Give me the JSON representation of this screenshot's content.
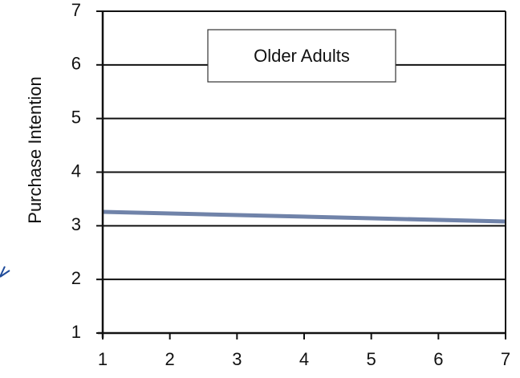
{
  "chart_data": {
    "type": "line",
    "title": "",
    "xlabel": "",
    "ylabel": "Purchase Intention",
    "xlim": [
      1,
      7
    ],
    "ylim": [
      1,
      7
    ],
    "x_ticks": [
      "1",
      "2",
      "3",
      "4",
      "5",
      "6",
      "7"
    ],
    "y_ticks": [
      "1",
      "2",
      "3",
      "4",
      "5",
      "6",
      "7"
    ],
    "grid": "horizontal",
    "legend": {
      "placement": "top-center",
      "label": "Older Adults"
    },
    "series": [
      {
        "name": "Older Adults",
        "color": "#7083a9",
        "x": [
          1,
          7
        ],
        "y": [
          3.26,
          3.08
        ]
      }
    ]
  }
}
